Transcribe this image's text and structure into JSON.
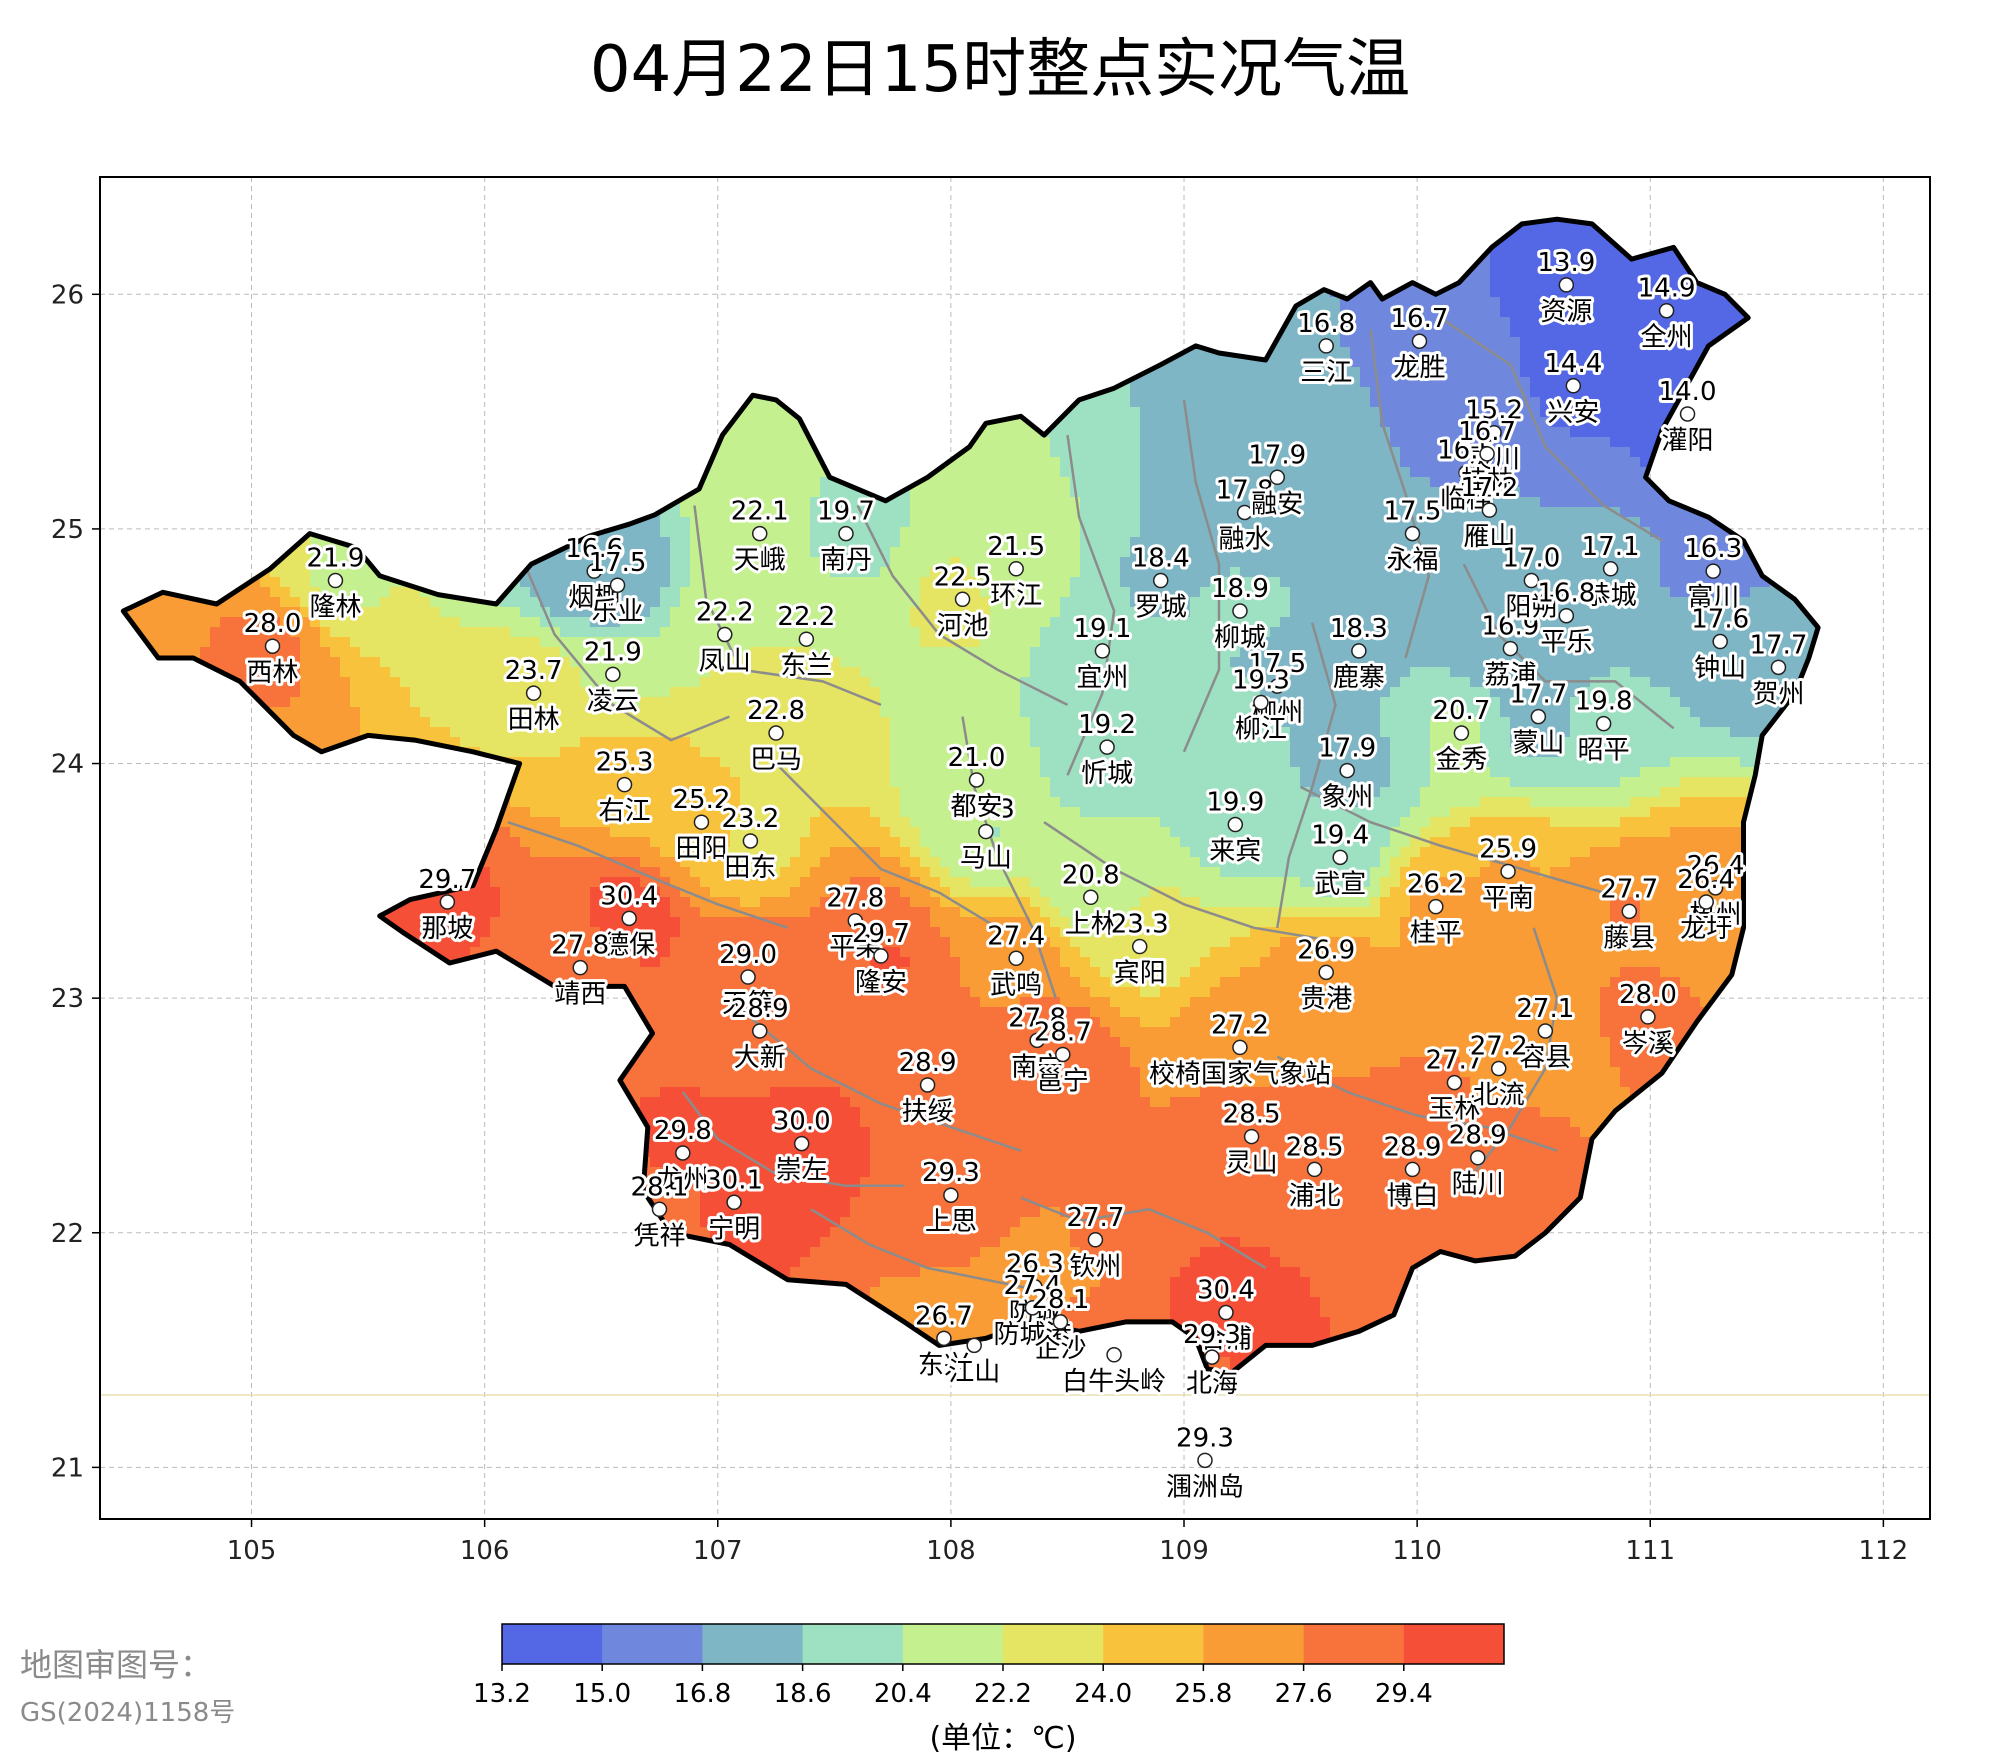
{
  "title": "04月22日15时整点实况气温",
  "approval": {
    "line1": "地图审图号：",
    "line2": "GS(2024)1158号"
  },
  "chart_data": {
    "type": "contour-map",
    "xlim": [
      104.35,
      112.2
    ],
    "ylim": [
      20.78,
      26.5
    ],
    "x_ticks": [
      105,
      106,
      107,
      108,
      109,
      110,
      111,
      112
    ],
    "y_ticks": [
      21,
      22,
      23,
      24,
      25,
      26
    ],
    "grid": true,
    "colorbar": {
      "levels": [
        13.2,
        15.0,
        16.8,
        18.6,
        20.4,
        22.2,
        24.0,
        25.8,
        27.6,
        29.4
      ],
      "colors": [
        "#5468e6",
        "#6f88de",
        "#7fb6c6",
        "#9ee0c2",
        "#c5f08f",
        "#e6e463",
        "#f8c23d",
        "#f99c36",
        "#f7733b",
        "#f64f38"
      ],
      "unit": "(单位：℃)"
    },
    "stations": [
      {
        "name": "西林",
        "lon": 105.09,
        "lat": 24.5,
        "value": "28.0"
      },
      {
        "name": "隆林",
        "lon": 105.36,
        "lat": 24.78,
        "value": "21.9"
      },
      {
        "name": "那坡",
        "lon": 105.84,
        "lat": 23.41,
        "value": "29.7"
      },
      {
        "name": "田林",
        "lon": 106.21,
        "lat": 24.3,
        "value": "23.7"
      },
      {
        "name": "凌云",
        "lon": 106.55,
        "lat": 24.38,
        "value": "21.9"
      },
      {
        "name": "烟棚",
        "lon": 106.47,
        "lat": 24.82,
        "value": "16.6"
      },
      {
        "name": "乐业",
        "lon": 106.57,
        "lat": 24.76,
        "value": "17.5"
      },
      {
        "name": "右江",
        "lon": 106.6,
        "lat": 23.91,
        "value": "25.3"
      },
      {
        "name": "德保",
        "lon": 106.62,
        "lat": 23.34,
        "value": "30.4"
      },
      {
        "name": "靖西",
        "lon": 106.41,
        "lat": 23.13,
        "value": "27.8"
      },
      {
        "name": "田阳",
        "lon": 106.93,
        "lat": 23.75,
        "value": "25.2"
      },
      {
        "name": "田东",
        "lon": 107.14,
        "lat": 23.67,
        "value": "23.2"
      },
      {
        "name": "天峨",
        "lon": 107.18,
        "lat": 24.98,
        "value": "22.1"
      },
      {
        "name": "南丹",
        "lon": 107.55,
        "lat": 24.98,
        "value": "19.7"
      },
      {
        "name": "凤山",
        "lon": 107.03,
        "lat": 24.55,
        "value": "22.2"
      },
      {
        "name": "东兰",
        "lon": 107.38,
        "lat": 24.53,
        "value": "22.2"
      },
      {
        "name": "巴马",
        "lon": 107.25,
        "lat": 24.13,
        "value": "22.8"
      },
      {
        "name": "河池",
        "lon": 108.05,
        "lat": 24.7,
        "value": "22.5"
      },
      {
        "name": "环江",
        "lon": 108.28,
        "lat": 24.83,
        "value": "21.5"
      },
      {
        "name": "天等",
        "lon": 107.13,
        "lat": 23.09,
        "value": "29.0"
      },
      {
        "name": "大新",
        "lon": 107.18,
        "lat": 22.86,
        "value": "28.9"
      },
      {
        "name": "平果",
        "lon": 107.59,
        "lat": 23.33,
        "value": "27.8"
      },
      {
        "name": "隆安",
        "lon": 107.7,
        "lat": 23.18,
        "value": "29.7"
      },
      {
        "name": "马山",
        "lon": 108.15,
        "lat": 23.71,
        "value": "20.3"
      },
      {
        "name": "都安",
        "lon": 108.11,
        "lat": 23.93,
        "value": "21.0"
      },
      {
        "name": "武鸣",
        "lon": 108.28,
        "lat": 23.17,
        "value": "27.4"
      },
      {
        "name": "上林",
        "lon": 108.6,
        "lat": 23.43,
        "value": "20.8"
      },
      {
        "name": "宾阳",
        "lon": 108.81,
        "lat": 23.22,
        "value": "23.3"
      },
      {
        "name": "罗城",
        "lon": 108.9,
        "lat": 24.78,
        "value": "18.4"
      },
      {
        "name": "宜州",
        "lon": 108.65,
        "lat": 24.48,
        "value": "19.1"
      },
      {
        "name": "忻城",
        "lon": 108.67,
        "lat": 24.07,
        "value": "19.2"
      },
      {
        "name": "来宾",
        "lon": 109.22,
        "lat": 23.74,
        "value": "19.9"
      },
      {
        "name": "融水",
        "lon": 109.26,
        "lat": 25.07,
        "value": "17.8"
      },
      {
        "name": "融安",
        "lon": 109.4,
        "lat": 25.22,
        "value": "17.9"
      },
      {
        "name": "三江",
        "lon": 109.61,
        "lat": 25.78,
        "value": "16.8"
      },
      {
        "name": "龙胜",
        "lon": 110.01,
        "lat": 25.8,
        "value": "16.7"
      },
      {
        "name": "资源",
        "lon": 110.64,
        "lat": 26.04,
        "value": "13.9"
      },
      {
        "name": "全州",
        "lon": 111.07,
        "lat": 25.93,
        "value": "14.9"
      },
      {
        "name": "兴安",
        "lon": 110.67,
        "lat": 25.61,
        "value": "14.4"
      },
      {
        "name": "灌阳",
        "lon": 111.16,
        "lat": 25.49,
        "value": "14.0"
      },
      {
        "name": "灵川",
        "lon": 110.33,
        "lat": 25.41,
        "value": "15.2"
      },
      {
        "name": "临桂",
        "lon": 110.21,
        "lat": 25.24,
        "value": "16.5"
      },
      {
        "name": "桂林",
        "lon": 110.3,
        "lat": 25.32,
        "value": "16.7"
      },
      {
        "name": "雁山",
        "lon": 110.31,
        "lat": 25.08,
        "value": "17.2"
      },
      {
        "name": "永福",
        "lon": 109.98,
        "lat": 24.98,
        "value": "17.5"
      },
      {
        "name": "柳城",
        "lon": 109.24,
        "lat": 24.65,
        "value": "18.9"
      },
      {
        "name": "柳州",
        "lon": 109.4,
        "lat": 24.33,
        "value": "17.5"
      },
      {
        "name": "鹿寨",
        "lon": 109.75,
        "lat": 24.48,
        "value": "18.3"
      },
      {
        "name": "柳江",
        "lon": 109.33,
        "lat": 24.26,
        "value": "19.3"
      },
      {
        "name": "象州",
        "lon": 109.7,
        "lat": 23.97,
        "value": "17.9"
      },
      {
        "name": "武宣",
        "lon": 109.67,
        "lat": 23.6,
        "value": "19.4"
      },
      {
        "name": "金秀",
        "lon": 110.19,
        "lat": 24.13,
        "value": "20.7"
      },
      {
        "name": "荔浦",
        "lon": 110.4,
        "lat": 24.49,
        "value": "16.9"
      },
      {
        "name": "阳朔",
        "lon": 110.49,
        "lat": 24.78,
        "value": "17.0"
      },
      {
        "name": "恭城",
        "lon": 110.83,
        "lat": 24.83,
        "value": "17.1"
      },
      {
        "name": "平乐",
        "lon": 110.64,
        "lat": 24.63,
        "value": "16.8"
      },
      {
        "name": "蒙山",
        "lon": 110.52,
        "lat": 24.2,
        "value": "17.7"
      },
      {
        "name": "昭平",
        "lon": 110.8,
        "lat": 24.17,
        "value": "19.8"
      },
      {
        "name": "富川",
        "lon": 111.27,
        "lat": 24.82,
        "value": "16.3"
      },
      {
        "name": "钟山",
        "lon": 111.3,
        "lat": 24.52,
        "value": "17.6"
      },
      {
        "name": "贺州",
        "lon": 111.55,
        "lat": 24.41,
        "value": "17.7"
      },
      {
        "name": "平南",
        "lon": 110.39,
        "lat": 23.54,
        "value": "25.9"
      },
      {
        "name": "桂平",
        "lon": 110.08,
        "lat": 23.39,
        "value": "26.2"
      },
      {
        "name": "藤县",
        "lon": 110.91,
        "lat": 23.37,
        "value": "27.7"
      },
      {
        "name": "梧州",
        "lon": 111.28,
        "lat": 23.47,
        "value": "26.4"
      },
      {
        "name": "龙圩",
        "lon": 111.24,
        "lat": 23.41,
        "value": "26.4"
      },
      {
        "name": "岑溪",
        "lon": 110.99,
        "lat": 22.92,
        "value": "28.0"
      },
      {
        "name": "贵港",
        "lon": 109.61,
        "lat": 23.11,
        "value": "26.9"
      },
      {
        "name": "校椅国家气象站",
        "lon": 109.24,
        "lat": 22.79,
        "value": "27.2"
      },
      {
        "name": "容县",
        "lon": 110.55,
        "lat": 22.86,
        "value": "27.1"
      },
      {
        "name": "玉林",
        "lon": 110.16,
        "lat": 22.64,
        "value": "27.7"
      },
      {
        "name": "北流",
        "lon": 110.35,
        "lat": 22.7,
        "value": "27.2"
      },
      {
        "name": "博白",
        "lon": 109.98,
        "lat": 22.27,
        "value": "28.9"
      },
      {
        "name": "陆川",
        "lon": 110.26,
        "lat": 22.32,
        "value": "28.9"
      },
      {
        "name": "灵山",
        "lon": 109.29,
        "lat": 22.41,
        "value": "28.5"
      },
      {
        "name": "浦北",
        "lon": 109.56,
        "lat": 22.27,
        "value": "28.5"
      },
      {
        "name": "南宁",
        "lon": 108.37,
        "lat": 22.82,
        "value": "27.8"
      },
      {
        "name": "邕宁",
        "lon": 108.48,
        "lat": 22.76,
        "value": "28.7"
      },
      {
        "name": "扶绥",
        "lon": 107.9,
        "lat": 22.63,
        "value": "28.9"
      },
      {
        "name": "上思",
        "lon": 108.0,
        "lat": 22.16,
        "value": "29.3"
      },
      {
        "name": "崇左",
        "lon": 107.36,
        "lat": 22.38,
        "value": "30.0"
      },
      {
        "name": "龙州",
        "lon": 106.85,
        "lat": 22.34,
        "value": "29.8"
      },
      {
        "name": "宁明",
        "lon": 107.07,
        "lat": 22.13,
        "value": "30.1"
      },
      {
        "name": "凭祥",
        "lon": 106.75,
        "lat": 22.1,
        "value": "28.1"
      },
      {
        "name": "钦州",
        "lon": 108.62,
        "lat": 21.97,
        "value": "27.7"
      },
      {
        "name": "防城",
        "lon": 108.36,
        "lat": 21.77,
        "value": "26.3"
      },
      {
        "name": "防城港",
        "lon": 108.35,
        "lat": 21.68,
        "value": "27.4"
      },
      {
        "name": "企沙",
        "lon": 108.47,
        "lat": 21.62,
        "value": "28.1"
      },
      {
        "name": "东兴",
        "lon": 107.97,
        "lat": 21.55,
        "value": "26.7"
      },
      {
        "name": "江山",
        "lon": 108.1,
        "lat": 21.52,
        "value": ""
      },
      {
        "name": "白牛头岭",
        "lon": 108.7,
        "lat": 21.48,
        "value": ""
      },
      {
        "name": "合浦",
        "lon": 109.18,
        "lat": 21.66,
        "value": "30.4"
      },
      {
        "name": "北海",
        "lon": 109.12,
        "lat": 21.47,
        "value": "29.3"
      },
      {
        "name": "涠洲岛",
        "lon": 109.09,
        "lat": 21.03,
        "value": "29.3"
      }
    ]
  }
}
